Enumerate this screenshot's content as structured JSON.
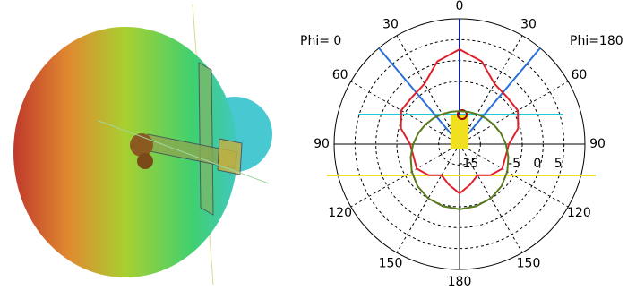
{
  "chart_data": {
    "type": "polar",
    "left_label": "Phi= 0",
    "right_label": "Phi=180",
    "x": [
      0,
      15,
      30,
      45,
      60,
      75,
      90,
      105,
      120,
      135,
      150,
      165,
      180,
      195,
      210,
      225,
      240,
      255,
      270,
      285,
      300,
      315,
      330,
      345
    ],
    "series": [
      {
        "color": "#e0202a",
        "values": [
          2.7,
          0.5,
          -3.3,
          -4.0,
          -3.9,
          -5.5,
          -8.2,
          -8.6,
          -8.2,
          -9.5,
          -11.4,
          -10.0,
          -8.2,
          -10.0,
          -11.4,
          -9.5,
          -8.2,
          -8.6,
          -8.2,
          -5.5,
          -3.9,
          -4.0,
          -3.3,
          0.5
        ]
      },
      {
        "color": "#5a7a20",
        "values": [
          -12.1,
          -12.0,
          -11.7,
          -11.2,
          -10.6,
          -9.8,
          -8.9,
          -7.9,
          -6.8,
          -5.8,
          -5.0,
          -4.6,
          -4.4,
          -4.6,
          -5.0,
          -5.8,
          -6.8,
          -7.9,
          -8.9,
          -9.8,
          -10.6,
          -11.2,
          -11.7,
          -12.0
        ]
      }
    ],
    "rlim": [
      -20,
      10
    ],
    "rticks": [
      -15,
      -5,
      0,
      5
    ],
    "angle_ticks": [
      {
        "value": 0,
        "label": "0"
      },
      {
        "value": 30,
        "label": "30"
      },
      {
        "value": 60,
        "label": "60"
      },
      {
        "value": 90,
        "label": "90"
      },
      {
        "value": 120,
        "label": "120"
      },
      {
        "value": 150,
        "label": "150"
      },
      {
        "value": 180,
        "label": "180"
      },
      {
        "value": 210,
        "label": "150"
      },
      {
        "value": 240,
        "label": "120"
      },
      {
        "value": 270,
        "label": "90"
      },
      {
        "value": 300,
        "label": "60"
      },
      {
        "value": 330,
        "label": "30"
      }
    ]
  }
}
